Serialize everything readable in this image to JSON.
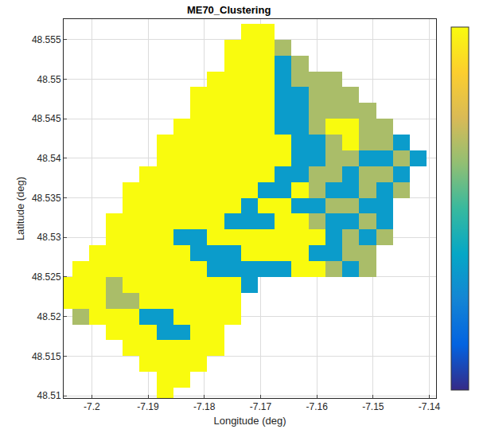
{
  "chart_data": {
    "type": "heatmap",
    "title": "ME70_Clustering",
    "x_label": "Longitude (deg)",
    "y_label": "Latitude (deg)",
    "x": [
      -7.205,
      -7.202,
      -7.199,
      -7.196,
      -7.193,
      -7.19,
      -7.187,
      -7.184,
      -7.181,
      -7.178,
      -7.175,
      -7.172,
      -7.169,
      -7.166,
      -7.163,
      -7.16,
      -7.157,
      -7.154,
      -7.151,
      -7.148,
      -7.145,
      -7.142,
      -7.139
    ],
    "y": [
      48.51,
      48.512,
      48.514,
      48.516,
      48.518,
      48.52,
      48.522,
      48.524,
      48.526,
      48.528,
      48.53,
      48.532,
      48.534,
      48.536,
      48.538,
      48.54,
      48.542,
      48.544,
      48.546,
      48.548,
      48.55,
      48.552,
      48.554,
      48.556
    ],
    "cells": [
      [
        null,
        null,
        null,
        null,
        null,
        null,
        3,
        null,
        null,
        null,
        null,
        null,
        null,
        null,
        null,
        null,
        null,
        null,
        null,
        null,
        null,
        null,
        null
      ],
      [
        null,
        null,
        null,
        null,
        null,
        null,
        3,
        3,
        null,
        null,
        null,
        null,
        null,
        null,
        null,
        null,
        null,
        null,
        null,
        null,
        null,
        null,
        null
      ],
      [
        null,
        null,
        null,
        null,
        null,
        3,
        3,
        3,
        3,
        null,
        null,
        null,
        null,
        null,
        null,
        null,
        null,
        null,
        null,
        null,
        null,
        null,
        null
      ],
      [
        null,
        null,
        null,
        null,
        3,
        3,
        3,
        3,
        3,
        3,
        null,
        null,
        null,
        null,
        null,
        null,
        null,
        null,
        null,
        null,
        null,
        null,
        null
      ],
      [
        null,
        null,
        null,
        3,
        3,
        3,
        1,
        1,
        3,
        3,
        null,
        null,
        null,
        null,
        null,
        null,
        null,
        null,
        null,
        null,
        null,
        null,
        null
      ],
      [
        null,
        2,
        3,
        3,
        3,
        1,
        1,
        3,
        3,
        3,
        3,
        null,
        null,
        null,
        null,
        null,
        null,
        null,
        null,
        null,
        null,
        null,
        null
      ],
      [
        3,
        3,
        3,
        2,
        2,
        3,
        3,
        3,
        3,
        3,
        3,
        null,
        null,
        null,
        null,
        null,
        null,
        null,
        null,
        null,
        null,
        null,
        null
      ],
      [
        3,
        3,
        3,
        2,
        3,
        3,
        3,
        3,
        3,
        3,
        3,
        1,
        null,
        null,
        null,
        null,
        null,
        null,
        null,
        null,
        null,
        null,
        null
      ],
      [
        null,
        3,
        3,
        3,
        3,
        3,
        3,
        3,
        3,
        1,
        1,
        1,
        1,
        1,
        3,
        3,
        2,
        1,
        2,
        null,
        null,
        null,
        null
      ],
      [
        null,
        null,
        3,
        3,
        3,
        3,
        3,
        3,
        1,
        1,
        1,
        3,
        3,
        3,
        3,
        1,
        1,
        2,
        2,
        null,
        null,
        null,
        null
      ],
      [
        null,
        null,
        null,
        3,
        3,
        3,
        3,
        1,
        1,
        3,
        3,
        3,
        3,
        3,
        3,
        3,
        1,
        2,
        1,
        2,
        null,
        null,
        null
      ],
      [
        null,
        null,
        null,
        3,
        3,
        3,
        3,
        3,
        3,
        3,
        1,
        1,
        1,
        3,
        3,
        2,
        1,
        1,
        2,
        1,
        null,
        null,
        null
      ],
      [
        null,
        null,
        null,
        null,
        3,
        3,
        3,
        3,
        3,
        3,
        3,
        1,
        3,
        3,
        1,
        1,
        2,
        2,
        1,
        1,
        null,
        null,
        null
      ],
      [
        null,
        null,
        null,
        null,
        3,
        3,
        3,
        3,
        3,
        3,
        3,
        3,
        1,
        1,
        3,
        2,
        1,
        1,
        2,
        1,
        2,
        null,
        null
      ],
      [
        null,
        null,
        null,
        null,
        null,
        3,
        3,
        3,
        3,
        3,
        3,
        3,
        3,
        1,
        1,
        2,
        2,
        1,
        2,
        2,
        1,
        null,
        null
      ],
      [
        null,
        null,
        null,
        null,
        null,
        null,
        3,
        3,
        3,
        3,
        3,
        3,
        3,
        3,
        1,
        1,
        2,
        2,
        1,
        1,
        2,
        1,
        null
      ],
      [
        null,
        null,
        null,
        null,
        null,
        null,
        3,
        3,
        3,
        3,
        3,
        3,
        3,
        3,
        1,
        1,
        2,
        3,
        2,
        2,
        1,
        null,
        null
      ],
      [
        null,
        null,
        null,
        null,
        null,
        null,
        null,
        3,
        3,
        3,
        3,
        3,
        3,
        1,
        1,
        2,
        3,
        3,
        2,
        2,
        null,
        null,
        null
      ],
      [
        null,
        null,
        null,
        null,
        null,
        null,
        null,
        null,
        3,
        3,
        3,
        3,
        3,
        1,
        1,
        2,
        2,
        2,
        2,
        null,
        null,
        null,
        null
      ],
      [
        null,
        null,
        null,
        null,
        null,
        null,
        null,
        null,
        3,
        3,
        3,
        3,
        3,
        1,
        1,
        2,
        2,
        2,
        null,
        null,
        null,
        null,
        null
      ],
      [
        null,
        null,
        null,
        null,
        null,
        null,
        null,
        null,
        null,
        3,
        3,
        3,
        3,
        1,
        2,
        2,
        2,
        null,
        null,
        null,
        null,
        null,
        null
      ],
      [
        null,
        null,
        null,
        null,
        null,
        null,
        null,
        null,
        null,
        null,
        3,
        3,
        3,
        1,
        2,
        null,
        null,
        null,
        null,
        null,
        null,
        null,
        null
      ],
      [
        null,
        null,
        null,
        null,
        null,
        null,
        null,
        null,
        null,
        null,
        3,
        3,
        3,
        2,
        null,
        null,
        null,
        null,
        null,
        null,
        null,
        null,
        null
      ],
      [
        null,
        null,
        null,
        null,
        null,
        null,
        null,
        null,
        null,
        null,
        null,
        3,
        3,
        null,
        null,
        null,
        null,
        null,
        null,
        null,
        null,
        null,
        null
      ]
    ],
    "colorbar": {
      "range": [
        0,
        3
      ]
    },
    "xlim": [
      -7.205,
      -7.1388
    ],
    "ylim": [
      48.5097,
      48.5576
    ],
    "xticks": [
      -7.2,
      -7.19,
      -7.18,
      -7.17,
      -7.16,
      -7.15,
      -7.14
    ],
    "yticks": [
      48.51,
      48.515,
      48.52,
      48.525,
      48.53,
      48.535,
      48.54,
      48.545,
      48.55,
      48.555
    ],
    "grid": true
  }
}
